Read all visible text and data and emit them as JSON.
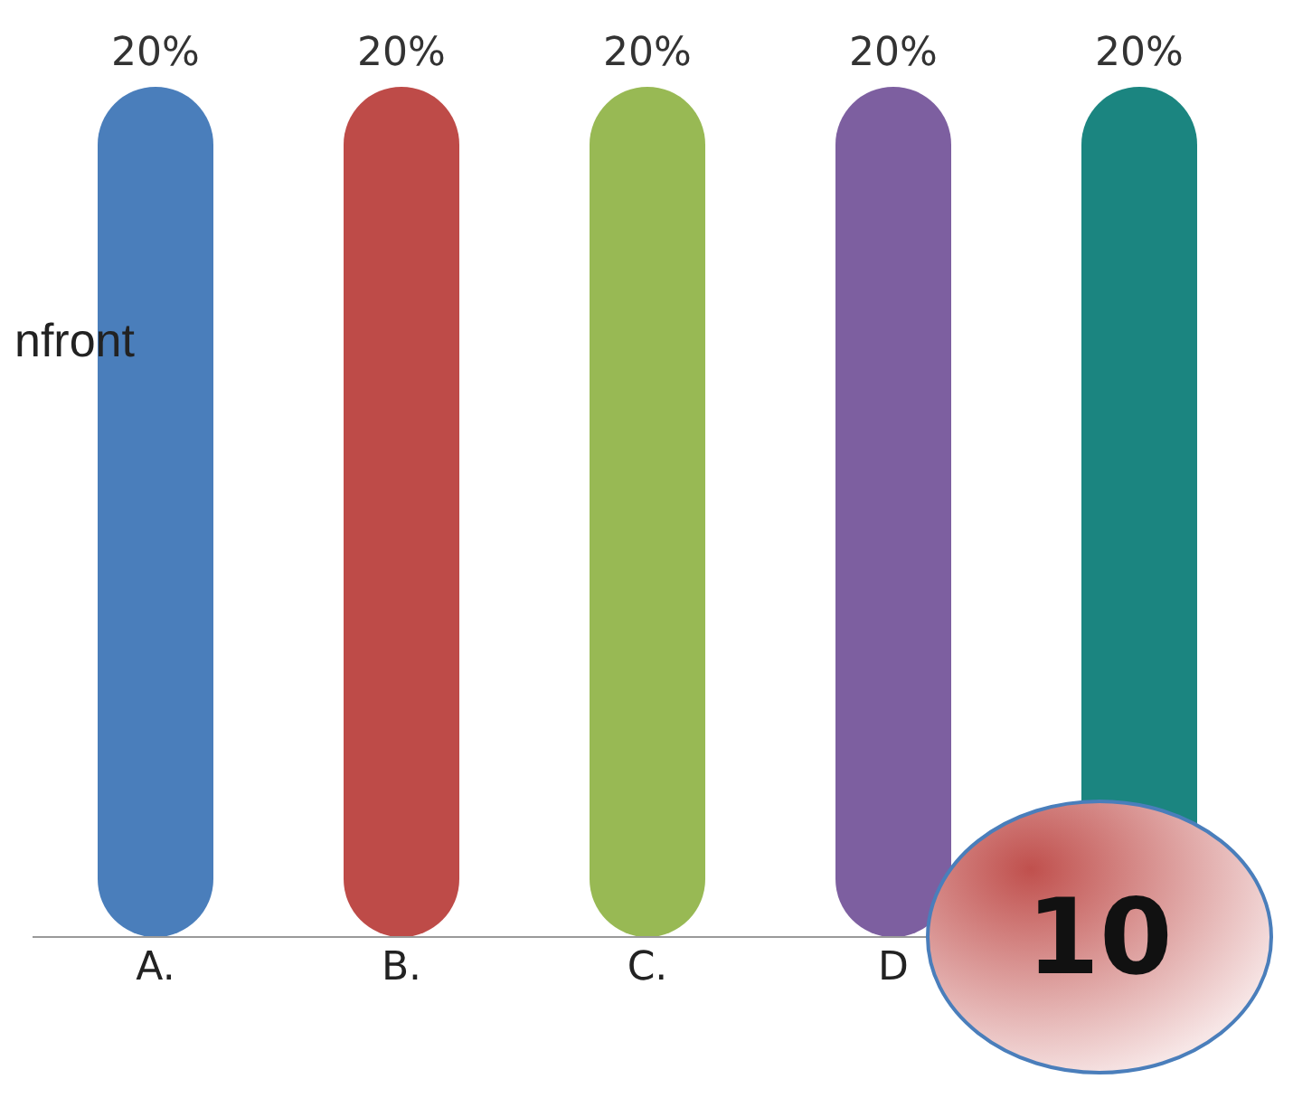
{
  "chart_data": {
    "type": "bar",
    "categories": [
      "A.",
      "B.",
      "C.",
      "D",
      null
    ],
    "values": [
      20,
      20,
      20,
      20,
      20
    ],
    "value_labels": [
      "20%",
      "20%",
      "20%",
      "20%",
      "20%"
    ],
    "colors": [
      "#4a7ebb",
      "#be4b48",
      "#98b954",
      "#7d5fa0",
      "#1b8580"
    ],
    "annotations": [
      "nfront",
      "10"
    ],
    "grid": false,
    "legend": false
  }
}
